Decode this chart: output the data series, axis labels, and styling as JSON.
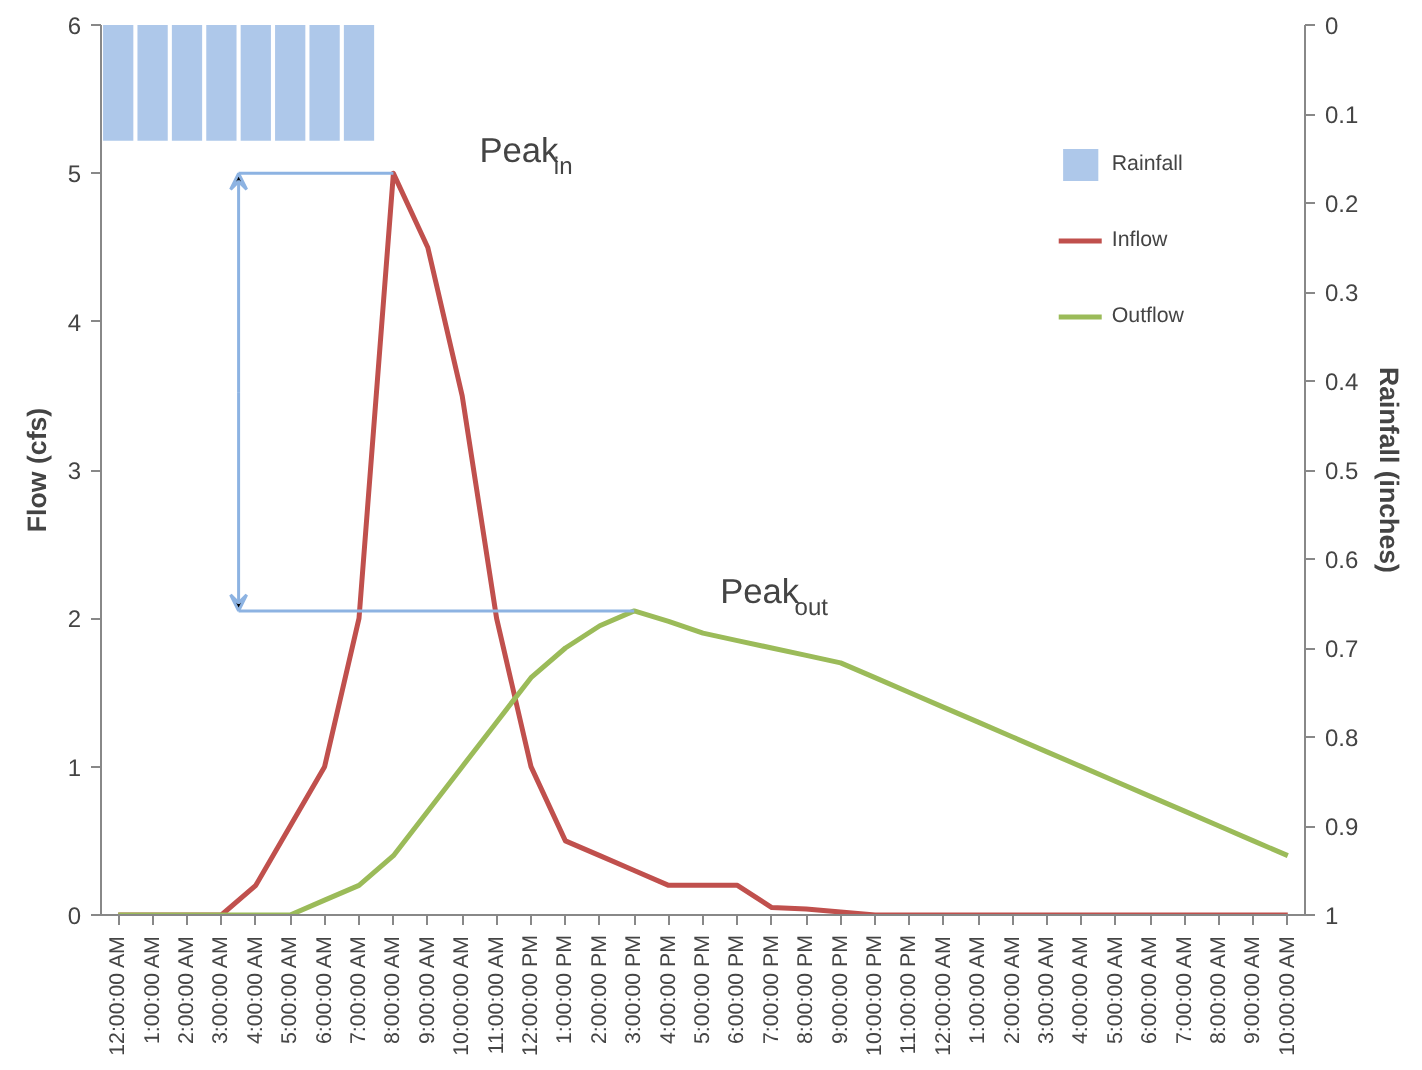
{
  "chart_data": {
    "type": "line",
    "xlabel": null,
    "ylabel": "Flow (cfs)",
    "y2label": "Rainfall (inches)",
    "categories": [
      "12:00:00 AM",
      "1:00:00 AM",
      "2:00:00 AM",
      "3:00:00 AM",
      "4:00:00 AM",
      "5:00:00 AM",
      "6:00:00 AM",
      "7:00:00 AM",
      "8:00:00 AM",
      "9:00:00 AM",
      "10:00:00 AM",
      "11:00:00 AM",
      "12:00:00 PM",
      "1:00:00 PM",
      "2:00:00 PM",
      "3:00:00 PM",
      "4:00:00 PM",
      "5:00:00 PM",
      "6:00:00 PM",
      "7:00:00 PM",
      "8:00:00 PM",
      "9:00:00 PM",
      "10:00:00 PM",
      "11:00:00 PM",
      "12:00:00 AM",
      "1:00:00 AM",
      "2:00:00 AM",
      "3:00:00 AM",
      "4:00:00 AM",
      "5:00:00 AM",
      "6:00:00 AM",
      "7:00:00 AM",
      "8:00:00 AM",
      "9:00:00 AM",
      "10:00:00 AM"
    ],
    "series": [
      {
        "name": "Rainfall",
        "type": "bar",
        "axis": "y2",
        "color": "#aec8ea",
        "values": [
          0.13,
          0.13,
          0.13,
          0.13,
          0.13,
          0.13,
          0.13,
          0.13,
          null,
          null,
          null,
          null,
          null,
          null,
          null,
          null,
          null,
          null,
          null,
          null,
          null,
          null,
          null,
          null,
          null,
          null,
          null,
          null,
          null,
          null,
          null,
          null,
          null,
          null,
          null
        ]
      },
      {
        "name": "Inflow",
        "color": "#c0504d",
        "values": [
          0,
          0,
          0,
          0,
          0.2,
          0.6,
          1.0,
          2.0,
          5.0,
          4.5,
          3.5,
          2.0,
          1.0,
          0.5,
          0.4,
          0.3,
          0.2,
          0.2,
          0.2,
          0.05,
          0.04,
          0.02,
          0,
          0,
          0,
          0,
          0,
          0,
          0,
          0,
          0,
          0,
          0,
          0,
          0
        ]
      },
      {
        "name": "Outflow",
        "color": "#9bbb59",
        "values": [
          0,
          0,
          0,
          0,
          0,
          0,
          0.1,
          0.2,
          0.4,
          0.7,
          1.0,
          1.3,
          1.6,
          1.8,
          1.95,
          2.05,
          1.98,
          1.9,
          1.85,
          1.8,
          1.75,
          1.7,
          1.6,
          1.5,
          1.4,
          1.3,
          1.2,
          1.1,
          1.0,
          0.9,
          0.8,
          0.7,
          0.6,
          0.5,
          0.4
        ]
      }
    ],
    "ylim": [
      0,
      6
    ],
    "yticks": [
      0,
      1,
      2,
      3,
      4,
      5,
      6
    ],
    "y2lim": [
      1,
      0
    ],
    "y2ticks": [
      0,
      0.1,
      0.2,
      0.3,
      0.4,
      0.5,
      0.6,
      0.7,
      0.8,
      0.9,
      1
    ],
    "annotations": [
      {
        "text": "Peak$_{in}$",
        "x": "8:00:00 AM",
        "y": 5.0
      },
      {
        "text": "Peak$_{out}$",
        "x": "3:00:00 PM",
        "y": 2.05
      }
    ],
    "legend": "top right",
    "grid": false
  }
}
